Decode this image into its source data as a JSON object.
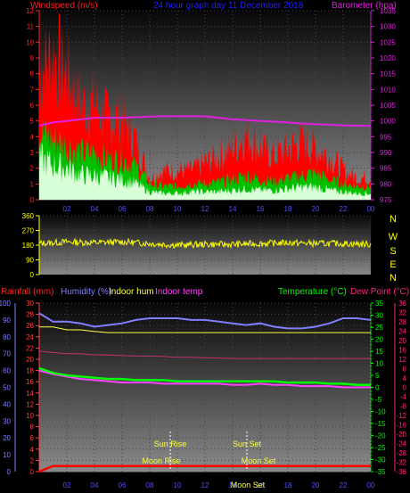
{
  "header": {
    "wind_label": "Windspeed (m/s)",
    "graph_title": "24 hour graph day   11 December 2018",
    "baro_label": "Barometer (hpa)"
  },
  "panel3_header": {
    "rain_label": "Rainfall (mm)",
    "hum_label": "Humidity (%)",
    "indoor_hum_label": "Indoor hum",
    "indoor_temp_label": "Indoor temp",
    "temp_label": "Temperature (°C)",
    "dew_label": "Dew Point (°C)"
  },
  "compass": [
    "N",
    "W",
    "S",
    "E",
    "N"
  ],
  "annotations": {
    "sun_rise": "Sun Rise",
    "sun_set": "Sun Set",
    "moon_rise": "Moon Rise",
    "moon_set_top": "Moon Set",
    "moon_set_axis": "Moon Set"
  },
  "colors": {
    "wind_label": "#ff2020",
    "title": "#2020ff",
    "baro": "#e020e0",
    "wind_fill": "#ff0000",
    "gust_fill": "#00c000",
    "avg_fill": "#d8ffd8",
    "dir": "#ffff00",
    "temp": "#00ff00",
    "hum": "#8080ff",
    "dew": "#ff2080",
    "indoor_hum": "#ffff40",
    "indoor_temp": "#ff40ff",
    "rain": "#ff0000"
  },
  "chart_data": [
    {
      "type": "area",
      "panel": "wind_baro",
      "x_ticks": [
        "02",
        "04",
        "06",
        "08",
        "10",
        "12",
        "14",
        "16",
        "18",
        "20",
        "22",
        "00"
      ],
      "y_left_ticks": [
        "0",
        "1",
        "2",
        "3",
        "4",
        "5",
        "6",
        "7",
        "8",
        "9",
        "10",
        "11",
        "12"
      ],
      "y_right_ticks": [
        "975",
        "980",
        "985",
        "990",
        "995",
        "1000",
        "1005",
        "1010",
        "1015",
        "1020",
        "1025",
        "1030",
        "1035"
      ],
      "ylim_left": [
        0,
        12
      ],
      "ylim_right": [
        975,
        1035
      ],
      "x_hours": [
        0,
        1,
        2,
        3,
        4,
        5,
        6,
        7,
        8,
        9,
        10,
        11,
        12,
        13,
        14,
        15,
        16,
        17,
        18,
        19,
        20,
        21,
        22,
        23,
        24
      ],
      "series": [
        {
          "key": "gust",
          "values": [
            8.5,
            10,
            8.5,
            6.5,
            6.5,
            5.5,
            5.5,
            4,
            1.5,
            2,
            2,
            2,
            2.5,
            3,
            3.5,
            4.5,
            3.5,
            3,
            3.5,
            4,
            3.5,
            3,
            2,
            1.5,
            1.5
          ]
        },
        {
          "key": "speed",
          "values": [
            5,
            4.5,
            4,
            3.5,
            3.5,
            3,
            3,
            2.5,
            1.2,
            1,
            1,
            1.2,
            1.2,
            1.3,
            1.5,
            1.8,
            1.5,
            1.4,
            1.6,
            1.8,
            2,
            1.5,
            1.2,
            1,
            1
          ]
        },
        {
          "key": "avg",
          "values": [
            2.6,
            2.2,
            2,
            1.6,
            1.5,
            1.4,
            1.3,
            1,
            0.5,
            0.4,
            0.4,
            0.5,
            0.5,
            0.5,
            0.6,
            0.7,
            0.6,
            0.6,
            0.7,
            0.8,
            0.8,
            0.6,
            0.5,
            0.4,
            0.4
          ]
        },
        {
          "key": "barometer",
          "axis": "right",
          "values": [
            998.5,
            999.5,
            1000,
            1000.5,
            1001,
            1001,
            1001,
            1001.2,
            1001.4,
            1001.5,
            1001.5,
            1001.5,
            1001.5,
            1001,
            1000.5,
            1000.3,
            1000,
            999.8,
            999.5,
            999.2,
            999,
            998.8,
            998.6,
            998.5,
            998.4
          ]
        }
      ]
    },
    {
      "type": "line",
      "panel": "wind_direction",
      "x_ticks": [],
      "y_ticks": [
        "0",
        "90",
        "180",
        "270",
        "360"
      ],
      "ylim": [
        0,
        360
      ],
      "x_hours": [
        0,
        2,
        4,
        6,
        8,
        10,
        12,
        14,
        16,
        18,
        20,
        22,
        24
      ],
      "series": [
        {
          "key": "direction",
          "values": [
            190,
            200,
            195,
            200,
            190,
            180,
            185,
            185,
            190,
            195,
            190,
            190,
            185
          ]
        }
      ]
    },
    {
      "type": "line",
      "panel": "temp_hum_rain",
      "x_ticks": [
        "02",
        "04",
        "06",
        "08",
        "10",
        "12",
        "14",
        "16",
        "18",
        "20",
        "22",
        "00"
      ],
      "y_left1_ticks": [
        "0",
        "10",
        "20",
        "30",
        "40",
        "50",
        "60",
        "70",
        "80",
        "90",
        "100"
      ],
      "y_left2_ticks": [
        "0",
        "2",
        "4",
        "6",
        "8",
        "10",
        "12",
        "14",
        "16",
        "18",
        "20",
        "22",
        "24",
        "26",
        "28",
        "30"
      ],
      "y_right1_ticks": [
        "-35",
        "-30",
        "-25",
        "-20",
        "-15",
        "-10",
        "-5",
        "0",
        "5",
        "10",
        "15",
        "20",
        "25",
        "30",
        "35"
      ],
      "y_right2_ticks": [
        "-36",
        "-32",
        "-28",
        "-24",
        "-20",
        "-16",
        "-12",
        "-8",
        "-4",
        "0",
        "4",
        "8",
        "12",
        "16",
        "20",
        "24",
        "28",
        "32",
        "36"
      ],
      "ylim_humidity": [
        0,
        100
      ],
      "ylim_temp": [
        -35,
        35
      ],
      "ylim_rain": [
        0,
        30
      ],
      "x_hours": [
        0,
        1,
        2,
        3,
        4,
        5,
        6,
        7,
        8,
        9,
        10,
        11,
        12,
        13,
        14,
        15,
        16,
        17,
        18,
        19,
        20,
        21,
        22,
        23,
        24
      ],
      "series": [
        {
          "key": "humidity",
          "values": [
            94,
            89,
            89,
            88,
            86,
            87,
            88,
            90,
            91,
            91,
            91,
            90,
            90,
            89,
            88,
            87,
            88,
            86,
            85,
            85,
            86,
            88,
            91,
            91,
            90
          ]
        },
        {
          "key": "temperature",
          "values": [
            8,
            6,
            5,
            4.5,
            4,
            3.5,
            3.5,
            3,
            3,
            3,
            2.5,
            2.5,
            2.5,
            2.5,
            2.5,
            2.5,
            2.5,
            2.5,
            2,
            2,
            2,
            1.5,
            1.5,
            1,
            1
          ]
        },
        {
          "key": "dew_point",
          "values": [
            7,
            5.5,
            4.5,
            3.5,
            3,
            2.5,
            2,
            2,
            2,
            1.5,
            1.5,
            1.5,
            1.5,
            1.5,
            1,
            1,
            1.5,
            1,
            1,
            0.5,
            0.5,
            0.5,
            0,
            0,
            0
          ]
        },
        {
          "key": "indoor_temp",
          "values": [
            15,
            14.5,
            14,
            14,
            13.5,
            13.5,
            13.2,
            13,
            13,
            12.8,
            12.5,
            12.5,
            12.3,
            12.2,
            12,
            12,
            12,
            12,
            12,
            12,
            12,
            12,
            12,
            12,
            12
          ]
        },
        {
          "key": "indoor_hum",
          "values": [
            26,
            26,
            25.5,
            25.5,
            25.2,
            25,
            25,
            25,
            25,
            25,
            25,
            25,
            25,
            25,
            25,
            25,
            25,
            25,
            25,
            25,
            25,
            25,
            25,
            25,
            25
          ]
        },
        {
          "key": "rainfall",
          "values": [
            0,
            1,
            1,
            1,
            1,
            1,
            1,
            1,
            1,
            1,
            1,
            1,
            1,
            1,
            1,
            1,
            1,
            1,
            1,
            1,
            1,
            1,
            1,
            1,
            1
          ]
        }
      ]
    }
  ]
}
